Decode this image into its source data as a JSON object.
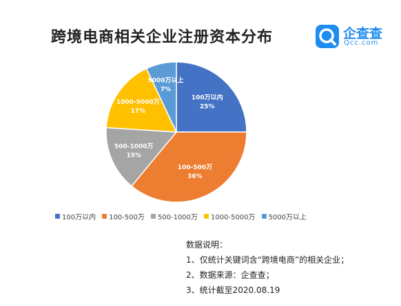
{
  "header": {
    "title": "跨境电商相关企业注册资本分布"
  },
  "logo": {
    "name": "企查查",
    "sub": "Qcc.com"
  },
  "chart_data": {
    "type": "pie",
    "title": "跨境电商相关企业注册资本分布",
    "categories": [
      "100万以内",
      "100-500万",
      "500-1000万",
      "1000-5000万",
      "5000万以上"
    ],
    "values": [
      25,
      36,
      15,
      17,
      7
    ],
    "value_labels": [
      "25%",
      "36%",
      "15%",
      "17%",
      "7%"
    ],
    "colors": [
      "#4472c4",
      "#ed7d31",
      "#a5a5a5",
      "#ffc000",
      "#5b9bd5"
    ],
    "legend": "bottom"
  },
  "notes": {
    "heading": "数据说明：",
    "lines": [
      "1、仅统计关键词含“跨境电商”的相关企业；",
      "2、数据来源：企查查；",
      "3、统计截至2020.08.19"
    ]
  },
  "icons": [
    "qcc-logo-icon"
  ]
}
